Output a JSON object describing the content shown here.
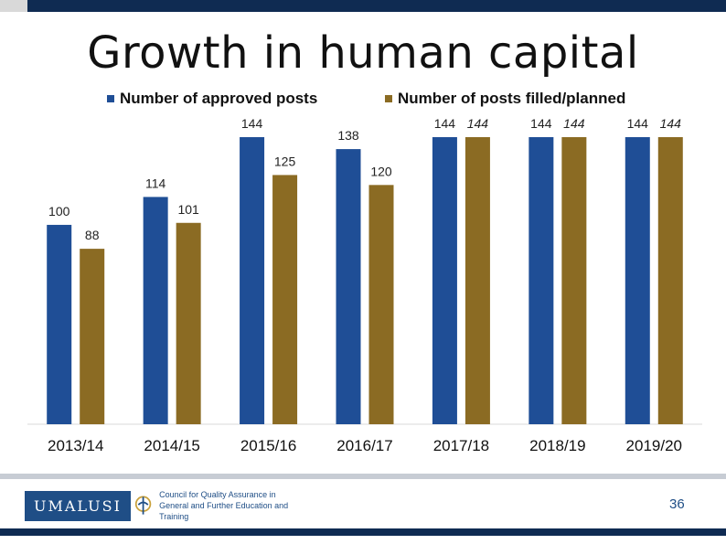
{
  "title": "Growth in human capital",
  "legend": {
    "approved_label": "Number of approved posts",
    "filled_label": "Number of posts filled/planned"
  },
  "colors": {
    "approved": "#1f4e96",
    "filled": "#8b6b23",
    "header": "#0f2b52"
  },
  "chart_data": {
    "type": "bar",
    "categories": [
      "2013/14",
      "2014/15",
      "2015/16",
      "2016/17",
      "2017/18",
      "2018/19",
      "2019/20"
    ],
    "series": [
      {
        "name": "Number of approved posts",
        "values": [
          100,
          114,
          144,
          138,
          144,
          144,
          144
        ],
        "labels": [
          "100",
          "114",
          "144",
          "138",
          "144",
          "144",
          "144"
        ]
      },
      {
        "name": "Number of posts filled/planned",
        "values": [
          88,
          101,
          125,
          120,
          144,
          144,
          144
        ],
        "labels": [
          "88",
          "101",
          "125",
          "120",
          "144",
          "144",
          "144"
        ]
      }
    ],
    "title": "Growth in human capital",
    "xlabel": "",
    "ylabel": "",
    "ylim": [
      0,
      144
    ],
    "grid": false,
    "legend_position": "top"
  },
  "footer": {
    "logo_text": "UMALUSI",
    "org_line1": "Council for Quality Assurance in",
    "org_line2": "General and Further Education and Training",
    "page_number": "36"
  }
}
